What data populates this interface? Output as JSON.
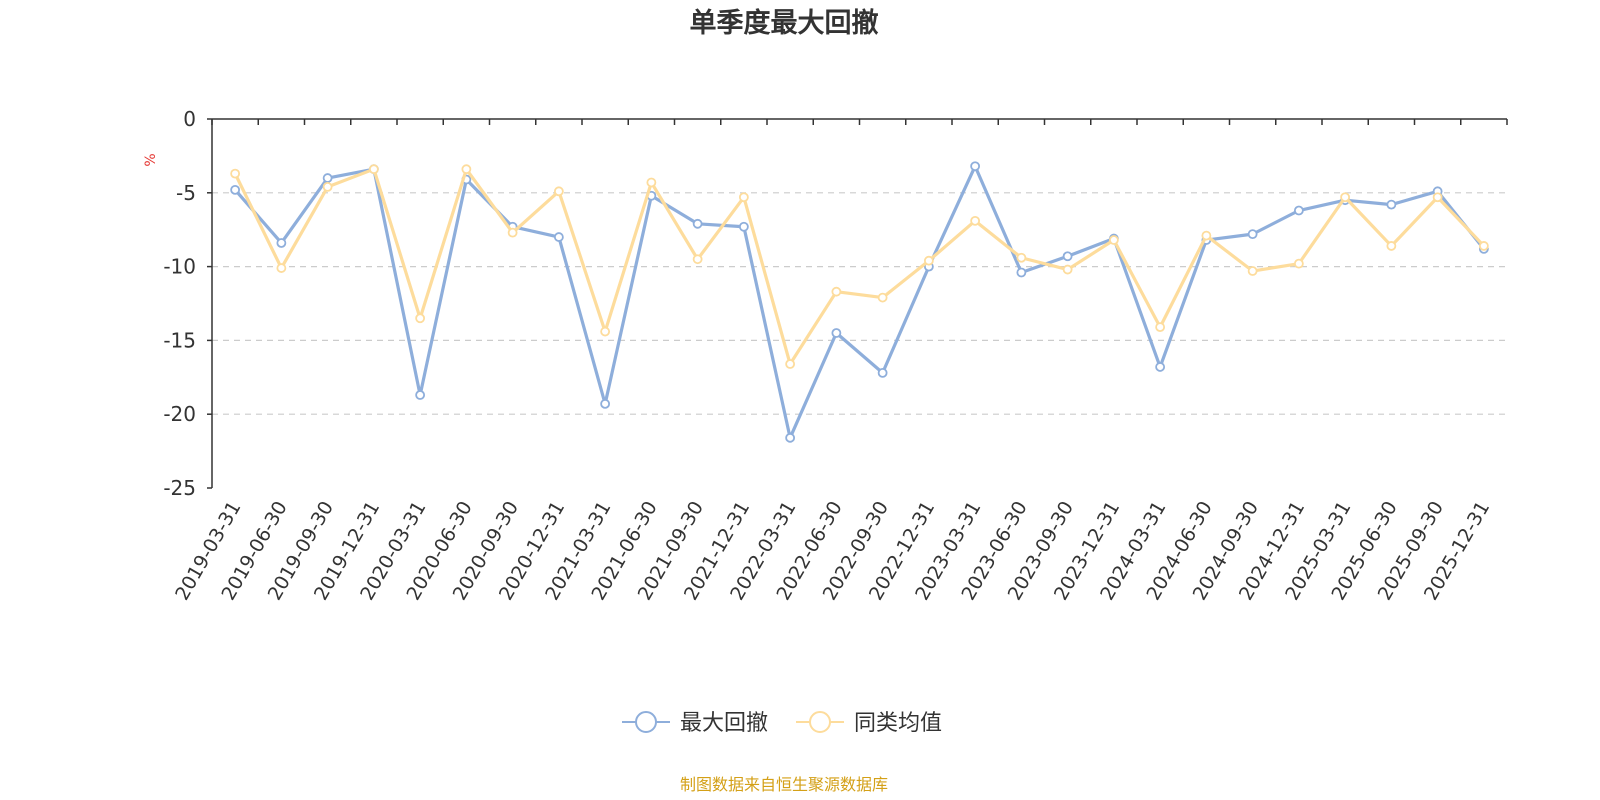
{
  "chart_data": {
    "type": "line",
    "title": "单季度最大回撤",
    "ylabel": "%",
    "ylim": [
      -25,
      0
    ],
    "yticks": [
      0,
      -5,
      -10,
      -15,
      -20,
      -25
    ],
    "grid": "horizontal dashed",
    "legend_position": "bottom-center",
    "x": [
      "2019-03-31",
      "2019-06-30",
      "2019-09-30",
      "2019-12-31",
      "2020-03-31",
      "2020-06-30",
      "2020-09-30",
      "2020-12-31",
      "2021-03-31",
      "2021-06-30",
      "2021-09-30",
      "2021-12-31",
      "2022-03-31",
      "2022-06-30",
      "2022-09-30",
      "2022-12-31",
      "2023-03-31",
      "2023-06-30",
      "2023-09-30",
      "2023-12-31",
      "2024-03-31",
      "2024-06-30",
      "2024-09-30",
      "2024-12-31",
      "2025-03-31",
      "2025-06-30",
      "2025-09-30",
      "2025-12-31"
    ],
    "series": [
      {
        "name": "最大回撤",
        "color": "#8eaedb",
        "values": [
          -4.8,
          -8.4,
          -4.0,
          -3.4,
          -18.7,
          -4.1,
          -7.3,
          -8.0,
          -19.3,
          -5.2,
          -7.1,
          -7.3,
          -21.6,
          -14.5,
          -17.2,
          -10.0,
          -3.2,
          -10.4,
          -9.3,
          -8.1,
          -16.8,
          -8.2,
          -7.8,
          -6.2,
          -5.5,
          -5.8,
          -4.9,
          -8.8
        ]
      },
      {
        "name": "同类均值",
        "color": "#fddc9c",
        "values": [
          -3.7,
          -10.1,
          -4.6,
          -3.4,
          -13.5,
          -3.4,
          -7.7,
          -4.9,
          -14.4,
          -4.3,
          -9.5,
          -5.3,
          -16.6,
          -11.7,
          -12.1,
          -9.6,
          -6.9,
          -9.4,
          -10.2,
          -8.2,
          -14.1,
          -7.9,
          -10.3,
          -9.8,
          -5.3,
          -8.6,
          -5.3,
          -8.6
        ]
      }
    ]
  },
  "legend": {
    "items": [
      "最大回撤",
      "同类均值"
    ]
  },
  "source_note": "制图数据来自恒生聚源数据库",
  "colors": {
    "axis": "#333333",
    "grid": "#cccccc",
    "unit": "#e53935",
    "source": "#d4a017"
  }
}
